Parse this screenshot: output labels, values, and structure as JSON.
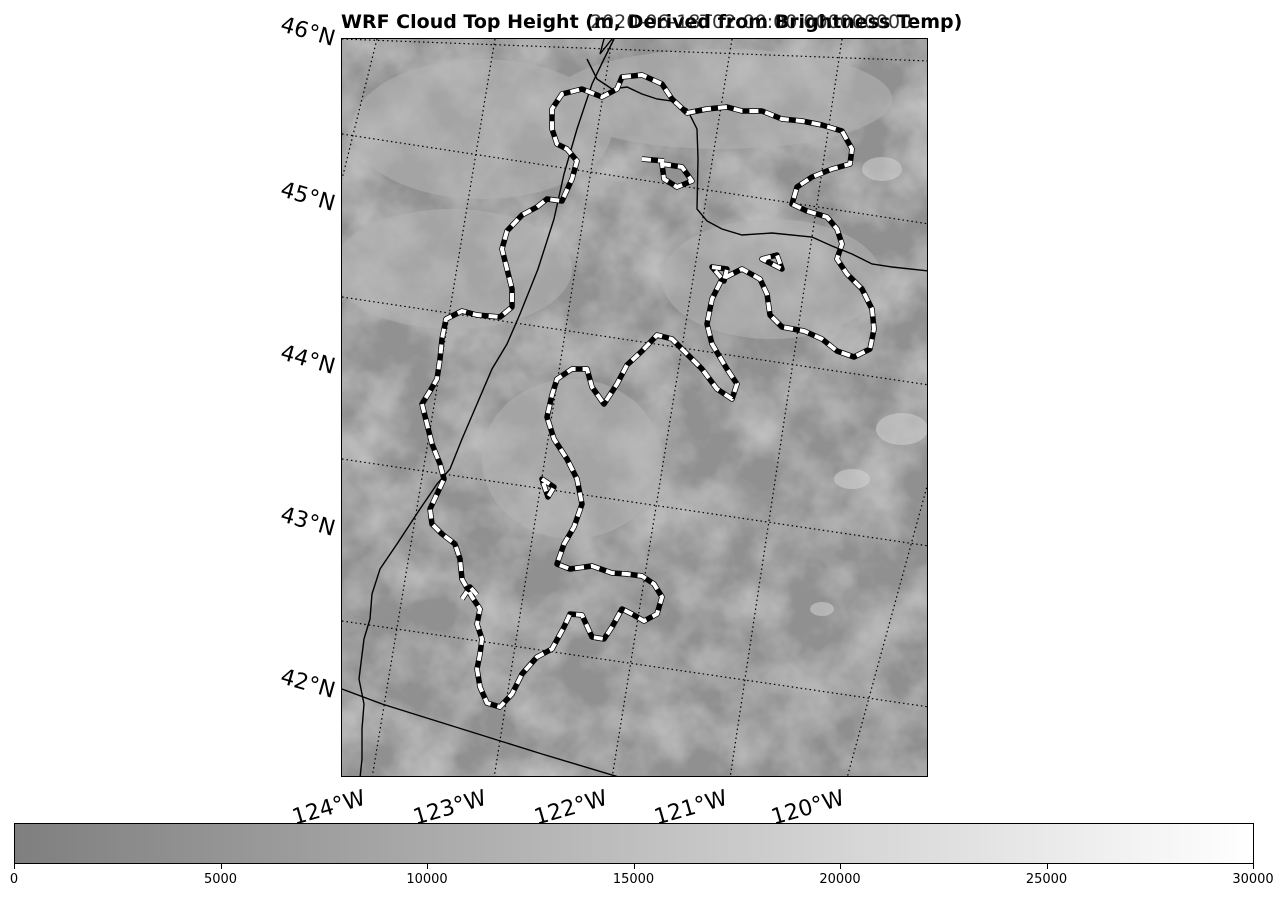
{
  "title": "WRF Cloud Top Height (m, Derived from Brightness Temp)",
  "timestamp": "2020-06-18T02:00:00.000000000",
  "lat_labels": [
    "46°N",
    "45°N",
    "44°N",
    "43°N",
    "42°N"
  ],
  "lon_labels": [
    "124°W",
    "123°W",
    "122°W",
    "121°W",
    "120°W"
  ],
  "colorbar": {
    "min": 0,
    "max": 30000,
    "ticks": [
      "0",
      "5000",
      "10000",
      "15000",
      "20000",
      "25000",
      "30000"
    ],
    "color_low": "#7f7f7f",
    "color_high": "#ffffff"
  },
  "legend_colors": {
    "contour_outer": "#000000",
    "contour_inner": "#ffffff",
    "coastline": "#000000",
    "gridline": "#000000"
  }
}
